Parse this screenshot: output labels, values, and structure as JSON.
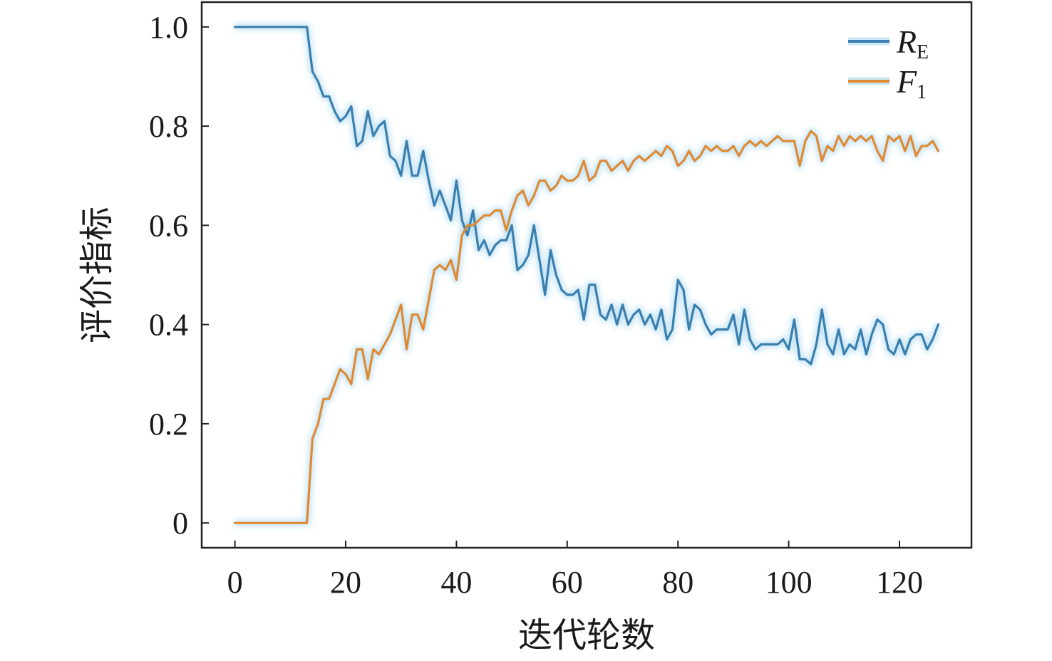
{
  "chart_data": {
    "type": "line",
    "title": "",
    "xlabel": "迭代轮数",
    "ylabel": "评价指标",
    "xlim": [
      -6,
      133
    ],
    "ylim": [
      -0.05,
      1.05
    ],
    "xticks": [
      0,
      20,
      40,
      60,
      80,
      100,
      120
    ],
    "xtick_labels": [
      "0",
      "20",
      "40",
      "60",
      "80",
      "100",
      "120"
    ],
    "yticks": [
      0,
      0.2,
      0.4,
      0.6,
      0.8,
      1.0
    ],
    "ytick_labels": [
      "0",
      "0.2",
      "0.4",
      "0.6",
      "0.8",
      "1.0"
    ],
    "grid": false,
    "legend_position": "top-right",
    "series": [
      {
        "name": "R",
        "name_sub": "E",
        "color": "#3b7fae",
        "x": [
          0,
          1,
          2,
          3,
          4,
          5,
          6,
          7,
          8,
          9,
          10,
          11,
          12,
          13,
          14,
          15,
          16,
          17,
          18,
          19,
          20,
          21,
          22,
          23,
          24,
          25,
          26,
          27,
          28,
          29,
          30,
          31,
          32,
          33,
          34,
          35,
          36,
          37,
          38,
          39,
          40,
          41,
          42,
          43,
          44,
          45,
          46,
          47,
          48,
          49,
          50,
          51,
          52,
          53,
          54,
          55,
          56,
          57,
          58,
          59,
          60,
          61,
          62,
          63,
          64,
          65,
          66,
          67,
          68,
          69,
          70,
          71,
          72,
          73,
          74,
          75,
          76,
          77,
          78,
          79,
          80,
          81,
          82,
          83,
          84,
          85,
          86,
          87,
          88,
          89,
          90,
          91,
          92,
          93,
          94,
          95,
          96,
          97,
          98,
          99,
          100,
          101,
          102,
          103,
          104,
          105,
          106,
          107,
          108,
          109,
          110,
          111,
          112,
          113,
          114,
          115,
          116,
          117,
          118,
          119,
          120,
          121,
          122,
          123,
          124,
          125,
          126,
          127
        ],
        "y": [
          1.0,
          1.0,
          1.0,
          1.0,
          1.0,
          1.0,
          1.0,
          1.0,
          1.0,
          1.0,
          1.0,
          1.0,
          1.0,
          1.0,
          0.91,
          0.89,
          0.86,
          0.86,
          0.83,
          0.81,
          0.82,
          0.84,
          0.76,
          0.77,
          0.83,
          0.78,
          0.8,
          0.81,
          0.74,
          0.73,
          0.7,
          0.77,
          0.7,
          0.7,
          0.75,
          0.69,
          0.64,
          0.67,
          0.64,
          0.61,
          0.69,
          0.61,
          0.58,
          0.63,
          0.55,
          0.57,
          0.54,
          0.56,
          0.57,
          0.57,
          0.6,
          0.51,
          0.52,
          0.54,
          0.6,
          0.53,
          0.46,
          0.55,
          0.5,
          0.47,
          0.46,
          0.46,
          0.47,
          0.41,
          0.48,
          0.48,
          0.42,
          0.41,
          0.44,
          0.4,
          0.44,
          0.4,
          0.42,
          0.43,
          0.4,
          0.42,
          0.39,
          0.43,
          0.37,
          0.39,
          0.49,
          0.47,
          0.39,
          0.44,
          0.43,
          0.4,
          0.38,
          0.39,
          0.39,
          0.39,
          0.42,
          0.36,
          0.43,
          0.37,
          0.35,
          0.36,
          0.36,
          0.36,
          0.36,
          0.37,
          0.35,
          0.41,
          0.33,
          0.33,
          0.32,
          0.36,
          0.43,
          0.36,
          0.34,
          0.39,
          0.34,
          0.36,
          0.35,
          0.39,
          0.34,
          0.38,
          0.41,
          0.4,
          0.35,
          0.34,
          0.37,
          0.34,
          0.37,
          0.38,
          0.38,
          0.35,
          0.37,
          0.4
        ]
      },
      {
        "name": "F",
        "name_sub": "1",
        "color": "#df8a32",
        "x": [
          0,
          1,
          2,
          3,
          4,
          5,
          6,
          7,
          8,
          9,
          10,
          11,
          12,
          13,
          14,
          15,
          16,
          17,
          18,
          19,
          20,
          21,
          22,
          23,
          24,
          25,
          26,
          27,
          28,
          29,
          30,
          31,
          32,
          33,
          34,
          35,
          36,
          37,
          38,
          39,
          40,
          41,
          42,
          43,
          44,
          45,
          46,
          47,
          48,
          49,
          50,
          51,
          52,
          53,
          54,
          55,
          56,
          57,
          58,
          59,
          60,
          61,
          62,
          63,
          64,
          65,
          66,
          67,
          68,
          69,
          70,
          71,
          72,
          73,
          74,
          75,
          76,
          77,
          78,
          79,
          80,
          81,
          82,
          83,
          84,
          85,
          86,
          87,
          88,
          89,
          90,
          91,
          92,
          93,
          94,
          95,
          96,
          97,
          98,
          99,
          100,
          101,
          102,
          103,
          104,
          105,
          106,
          107,
          108,
          109,
          110,
          111,
          112,
          113,
          114,
          115,
          116,
          117,
          118,
          119,
          120,
          121,
          122,
          123,
          124,
          125,
          126,
          127
        ],
        "y": [
          0.0,
          0.0,
          0.0,
          0.0,
          0.0,
          0.0,
          0.0,
          0.0,
          0.0,
          0.0,
          0.0,
          0.0,
          0.0,
          0.0,
          0.17,
          0.2,
          0.25,
          0.25,
          0.28,
          0.31,
          0.3,
          0.28,
          0.35,
          0.35,
          0.29,
          0.35,
          0.34,
          0.36,
          0.38,
          0.41,
          0.44,
          0.35,
          0.42,
          0.42,
          0.39,
          0.45,
          0.51,
          0.52,
          0.51,
          0.53,
          0.49,
          0.58,
          0.6,
          0.6,
          0.61,
          0.62,
          0.62,
          0.63,
          0.63,
          0.59,
          0.63,
          0.66,
          0.67,
          0.64,
          0.66,
          0.69,
          0.69,
          0.67,
          0.68,
          0.7,
          0.69,
          0.69,
          0.7,
          0.73,
          0.69,
          0.7,
          0.73,
          0.73,
          0.71,
          0.72,
          0.73,
          0.71,
          0.73,
          0.74,
          0.73,
          0.74,
          0.75,
          0.74,
          0.76,
          0.75,
          0.72,
          0.73,
          0.75,
          0.73,
          0.74,
          0.76,
          0.75,
          0.76,
          0.75,
          0.75,
          0.76,
          0.74,
          0.76,
          0.77,
          0.76,
          0.77,
          0.76,
          0.77,
          0.78,
          0.77,
          0.77,
          0.77,
          0.72,
          0.77,
          0.79,
          0.78,
          0.73,
          0.76,
          0.75,
          0.78,
          0.76,
          0.78,
          0.77,
          0.78,
          0.77,
          0.78,
          0.75,
          0.73,
          0.78,
          0.77,
          0.78,
          0.75,
          0.78,
          0.74,
          0.76,
          0.76,
          0.77,
          0.75
        ]
      }
    ]
  }
}
